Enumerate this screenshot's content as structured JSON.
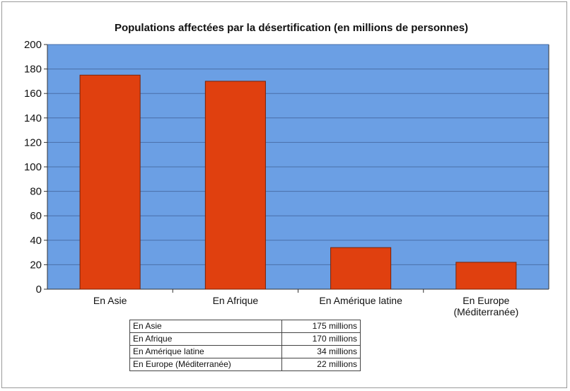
{
  "chart_data": {
    "type": "bar",
    "title": "Populations affectées par la désertification (en millions de personnes)",
    "categories": [
      "En Asie",
      "En Afrique",
      "En Amérique latine",
      "En Europe (Méditerranée)"
    ],
    "category_lines": [
      [
        "En Asie"
      ],
      [
        "En Afrique"
      ],
      [
        "En Amérique latine"
      ],
      [
        "En Europe",
        "(Méditerranée)"
      ]
    ],
    "values": [
      175,
      170,
      34,
      22
    ],
    "ylim": [
      0,
      200
    ],
    "yticks": [
      "0",
      "20",
      "40",
      "60",
      "80",
      "100",
      "120",
      "140",
      "160",
      "180",
      "200"
    ],
    "xlabel": "",
    "ylabel": "",
    "grid": true,
    "colors": {
      "plot_background": "#6b9fe4",
      "bar": "#e0400f",
      "gridline": "#4a6fa8"
    }
  },
  "table": {
    "rows": [
      {
        "category": "En Asie",
        "value": "175 millions"
      },
      {
        "category": "En Afrique",
        "value": "170 millions"
      },
      {
        "category": "En Amérique latine",
        "value": "34 millions"
      },
      {
        "category": "En Europe (Méditerranée)",
        "value": "22 millions"
      }
    ]
  }
}
